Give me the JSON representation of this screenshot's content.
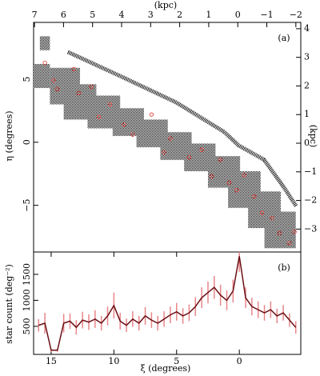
{
  "chart_data": [
    {
      "type": "scatter",
      "panel_label": "(a)",
      "ylabel": "η (degrees)",
      "x2label": "(kpc)",
      "y2label": "(kpc)",
      "xlim": [
        16.4,
        -4.9
      ],
      "ylim": [
        -8.7,
        9.5
      ],
      "yticks": [
        {
          "value": -5,
          "label": "−5"
        },
        0,
        5
      ],
      "x2lim": [
        7.03,
        -2.17
      ],
      "x2ticks": [
        7,
        6,
        5,
        4,
        3,
        2,
        1,
        0,
        {
          "value": -1,
          "label": "−1"
        },
        {
          "value": -2,
          "label": "−2"
        }
      ],
      "y2lim": [
        -3.8,
        4.22
      ],
      "y2ticks": [
        {
          "value": -3,
          "label": "−3"
        },
        {
          "value": -2,
          "label": "−2"
        },
        {
          "value": -1,
          "label": "−1"
        },
        0,
        1,
        2,
        3,
        4
      ],
      "fields": [
        {
          "xlim": [
            15.9,
            15.1
          ],
          "ylim": [
            7.3,
            8.4
          ]
        },
        {
          "xlim": [
            16.4,
            15.1
          ],
          "ylim": [
            4.3,
            6.2
          ]
        },
        {
          "xlim": [
            15.1,
            12.7
          ],
          "ylim": [
            3.0,
            5.9
          ]
        },
        {
          "xlim": [
            14.0,
            11.4
          ],
          "ylim": [
            1.8,
            4.6
          ]
        },
        {
          "xlim": [
            12.1,
            9.5
          ],
          "ylim": [
            1.1,
            3.7
          ]
        },
        {
          "xlim": [
            10.1,
            7.6
          ],
          "ylim": [
            0.5,
            2.7
          ]
        },
        {
          "xlim": [
            8.2,
            5.7
          ],
          "ylim": [
            -0.4,
            1.8
          ]
        },
        {
          "xlim": [
            6.3,
            3.8
          ],
          "ylim": [
            -1.4,
            0.8
          ]
        },
        {
          "xlim": [
            4.4,
            1.9
          ],
          "ylim": [
            -2.3,
            -0.1
          ]
        },
        {
          "xlim": [
            2.5,
            -0.06
          ],
          "ylim": [
            -3.6,
            -1.1
          ]
        },
        {
          "xlim": [
            0.9,
            -1.7
          ],
          "ylim": [
            -5.2,
            -2.3
          ]
        },
        {
          "xlim": [
            -0.7,
            -3.3
          ],
          "ylim": [
            -6.8,
            -3.9
          ]
        },
        {
          "xlim": [
            -2.0,
            -4.5
          ],
          "ylim": [
            -8.4,
            -5.5
          ]
        }
      ],
      "stream": {
        "color": "#111",
        "x": [
          13.66,
          9.5,
          5.04,
          1.21,
          0.06,
          -1.98,
          -3.57,
          -4.53
        ],
        "values": [
          7.15,
          5.25,
          3.16,
          0.82,
          -0.25,
          -1.39,
          -3.6,
          -5.06
        ]
      },
      "series": [
        {
          "color": "#e0302a",
          "x": [
            15.5,
            14.8,
            14.5,
            13.2,
            12.8,
            11.8,
            11.2,
            10.3,
            9.2,
            8.5,
            7.0,
            6.0,
            5.5,
            4.0,
            3.0,
            2.2,
            1.5,
            0.8,
            0.2,
            -0.4,
            -1.2,
            -1.8,
            -2.6,
            -3.2,
            -4.4,
            -4.0
          ],
          "values": [
            6.3,
            4.9,
            4.2,
            5.8,
            3.9,
            4.4,
            2.0,
            3.0,
            1.4,
            0.6,
            2.2,
            -0.8,
            0.3,
            -1.2,
            -0.6,
            -2.7,
            -1.4,
            -3.2,
            -3.8,
            -2.6,
            -4.3,
            -5.6,
            -6.0,
            -7.2,
            -7.1,
            -8.0
          ]
        }
      ]
    },
    {
      "type": "line",
      "panel_label": "(b)",
      "xlabel": "ξ (degrees)",
      "ylabel": "star count (deg⁻²)",
      "xlim": [
        16.4,
        -4.9
      ],
      "xticks": [
        15,
        10,
        5,
        0
      ],
      "ylim": [
        -40,
        1930
      ],
      "yticks": [
        500,
        1000,
        1500
      ],
      "series": [
        {
          "color": "#6b0f14",
          "error_color": "#e8868a",
          "x": [
            16.0,
            15.5,
            15.0,
            14.5,
            14.0,
            13.5,
            13.0,
            12.5,
            12.0,
            11.5,
            11.0,
            10.5,
            10.0,
            9.5,
            9.0,
            8.5,
            8.0,
            7.5,
            7.0,
            6.5,
            6.0,
            5.5,
            5.0,
            4.5,
            4.0,
            3.5,
            3.0,
            2.5,
            2.0,
            1.5,
            1.0,
            0.5,
            0.0,
            -0.5,
            -1.0,
            -1.5,
            -2.0,
            -2.5,
            -3.0,
            -3.5,
            -4.0,
            -4.5
          ],
          "values": [
            520,
            560,
            40,
            40,
            560,
            600,
            480,
            620,
            580,
            640,
            560,
            700,
            900,
            600,
            520,
            640,
            560,
            700,
            620,
            560,
            640,
            720,
            780,
            700,
            760,
            880,
            1050,
            1150,
            1250,
            1100,
            1000,
            1180,
            1850,
            1050,
            880,
            820,
            760,
            820,
            700,
            760,
            620,
            480
          ],
          "errors": [
            120,
            200,
            30,
            30,
            180,
            150,
            140,
            160,
            150,
            170,
            140,
            180,
            250,
            160,
            130,
            150,
            140,
            170,
            150,
            140,
            150,
            160,
            170,
            150,
            160,
            180,
            200,
            210,
            220,
            200,
            190,
            220,
            300,
            200,
            170,
            160,
            150,
            160,
            140,
            150,
            130,
            120
          ]
        }
      ]
    }
  ]
}
